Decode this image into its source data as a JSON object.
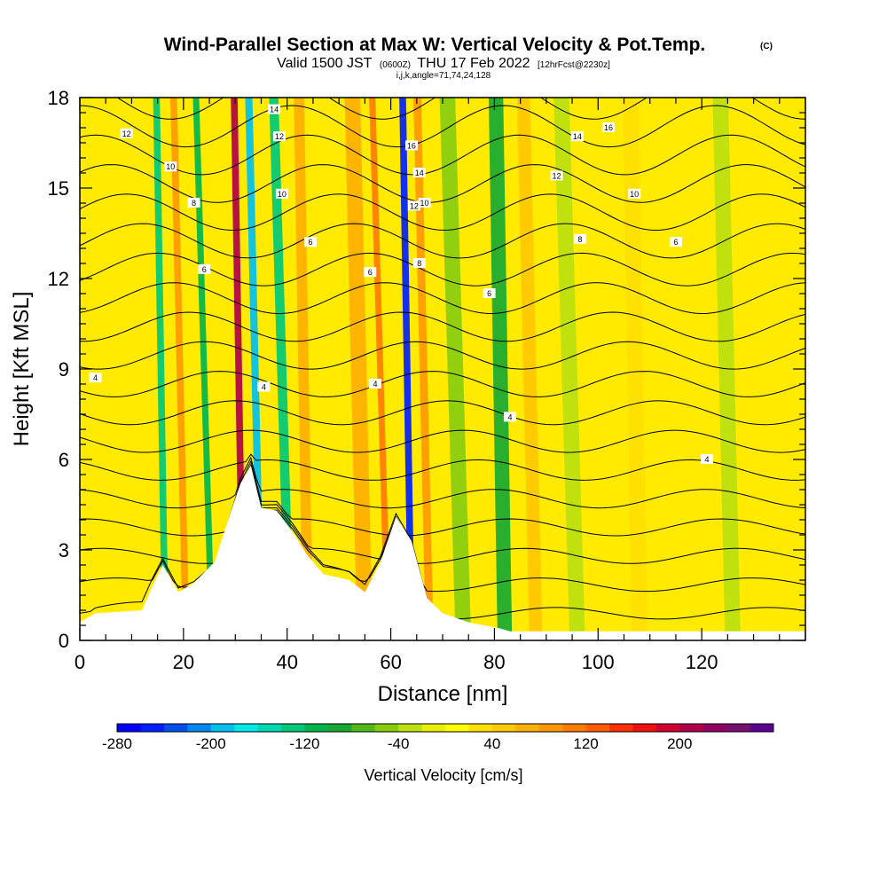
{
  "header": {
    "title": "Wind-Parallel Section at Max W: Vertical Velocity & Pot.Temp.",
    "copyright": "(C)",
    "valid_prefix": "Valid 1500 JST",
    "valid_utc": "(0600Z)",
    "valid_date": "THU 17 Feb 2022",
    "forecast": "[12hrFcst@2230z]",
    "indices": "i,j,k,angle=71,74,24,128"
  },
  "chart_data": {
    "type": "heatmap",
    "xlabel": "Distance [nm]",
    "ylabel": "Height [Kft MSL]",
    "xlim": [
      0,
      140
    ],
    "ylim": [
      0,
      18
    ],
    "x_ticks": [
      0,
      20,
      40,
      60,
      80,
      100,
      120
    ],
    "y_ticks": [
      0,
      3,
      6,
      9,
      12,
      15,
      18
    ],
    "grid": false,
    "terrain": [
      {
        "x": 0,
        "y": 0.6
      },
      {
        "x": 3,
        "y": 0.9
      },
      {
        "x": 12,
        "y": 1.0
      },
      {
        "x": 14,
        "y": 1.8
      },
      {
        "x": 16,
        "y": 2.5
      },
      {
        "x": 19,
        "y": 1.6
      },
      {
        "x": 22,
        "y": 1.9
      },
      {
        "x": 26,
        "y": 2.6
      },
      {
        "x": 29,
        "y": 4.2
      },
      {
        "x": 31,
        "y": 5.2
      },
      {
        "x": 33,
        "y": 5.8
      },
      {
        "x": 35,
        "y": 4.4
      },
      {
        "x": 38,
        "y": 4.3
      },
      {
        "x": 41,
        "y": 3.6
      },
      {
        "x": 44,
        "y": 2.8
      },
      {
        "x": 47,
        "y": 2.2
      },
      {
        "x": 52,
        "y": 2.0
      },
      {
        "x": 55,
        "y": 1.6
      },
      {
        "x": 58,
        "y": 2.6
      },
      {
        "x": 61,
        "y": 4.1
      },
      {
        "x": 64,
        "y": 3.3
      },
      {
        "x": 67,
        "y": 1.4
      },
      {
        "x": 70,
        "y": 0.9
      },
      {
        "x": 75,
        "y": 0.6
      },
      {
        "x": 81,
        "y": 0.4
      },
      {
        "x": 83,
        "y": 0.3
      },
      {
        "x": 140,
        "y": 0.3
      }
    ],
    "velocity_bands": [
      {
        "x": 16.5,
        "w": 1.3,
        "v": -130
      },
      {
        "x": 20.5,
        "w": 1.3,
        "v": 90
      },
      {
        "x": 25.5,
        "w": 1.2,
        "v": -110
      },
      {
        "x": 31.5,
        "w": 1.3,
        "v": 210
      },
      {
        "x": 35.0,
        "w": 1.4,
        "v": -200
      },
      {
        "x": 40.5,
        "w": 1.8,
        "v": -130
      },
      {
        "x": 44.0,
        "w": 2.0,
        "v": 60
      },
      {
        "x": 55.0,
        "w": 3.0,
        "v": 60
      },
      {
        "x": 59.5,
        "w": 1.2,
        "v": 110
      },
      {
        "x": 64.0,
        "w": 1.3,
        "v": -250
      },
      {
        "x": 67.5,
        "w": 1.5,
        "v": 90
      },
      {
        "x": 74.0,
        "w": 3.0,
        "v": -50
      },
      {
        "x": 82.0,
        "w": 2.8,
        "v": -90
      },
      {
        "x": 88.0,
        "w": 2.5,
        "v": 40
      },
      {
        "x": 96.0,
        "w": 3.0,
        "v": -40
      },
      {
        "x": 108.0,
        "w": 3.0,
        "v": 35
      },
      {
        "x": 126.0,
        "w": 3.0,
        "v": -40
      }
    ],
    "theta_contour_labels": [
      {
        "x": 3,
        "y": 8.7,
        "text": "4"
      },
      {
        "x": 35.5,
        "y": 8.4,
        "text": "4"
      },
      {
        "x": 57,
        "y": 8.5,
        "text": "4"
      },
      {
        "x": 83,
        "y": 7.4,
        "text": "4"
      },
      {
        "x": 121,
        "y": 6.0,
        "text": "4"
      },
      {
        "x": 24,
        "y": 12.3,
        "text": "6"
      },
      {
        "x": 44.5,
        "y": 13.2,
        "text": "6"
      },
      {
        "x": 56,
        "y": 12.2,
        "text": "6"
      },
      {
        "x": 79,
        "y": 11.5,
        "text": "6"
      },
      {
        "x": 65.5,
        "y": 12.5,
        "text": "8"
      },
      {
        "x": 22,
        "y": 14.5,
        "text": "8"
      },
      {
        "x": 96.5,
        "y": 13.3,
        "text": "8"
      },
      {
        "x": 115,
        "y": 13.2,
        "text": "6"
      },
      {
        "x": 17.5,
        "y": 15.7,
        "text": "10"
      },
      {
        "x": 39,
        "y": 14.8,
        "text": "10"
      },
      {
        "x": 66.5,
        "y": 14.5,
        "text": "10"
      },
      {
        "x": 107,
        "y": 14.8,
        "text": "10"
      },
      {
        "x": 9,
        "y": 16.8,
        "text": "12"
      },
      {
        "x": 38.5,
        "y": 16.7,
        "text": "12"
      },
      {
        "x": 64.5,
        "y": 14.4,
        "text": "12"
      },
      {
        "x": 92,
        "y": 15.4,
        "text": "12"
      },
      {
        "x": 37.5,
        "y": 17.6,
        "text": "14"
      },
      {
        "x": 65.5,
        "y": 15.5,
        "text": "14"
      },
      {
        "x": 96,
        "y": 16.7,
        "text": "14"
      },
      {
        "x": 64,
        "y": 16.4,
        "text": "16"
      },
      {
        "x": 102,
        "y": 17.0,
        "text": "16"
      }
    ],
    "colorbar": {
      "label": "Vertical Velocity [cm/s]",
      "range": [
        -280,
        280
      ],
      "tick_values": [
        -280,
        -200,
        -120,
        -40,
        40,
        120,
        200
      ],
      "tick_labels": [
        "-280",
        "-200",
        "-120",
        "-40",
        "40",
        "120",
        "200"
      ],
      "colors": [
        "#0000ff",
        "#0020ff",
        "#0050f0",
        "#0088f0",
        "#00c0f0",
        "#00e8e8",
        "#00d8b0",
        "#00c878",
        "#00b44c",
        "#18a832",
        "#50b818",
        "#88cc10",
        "#bce010",
        "#e8f000",
        "#ffff00",
        "#ffe000",
        "#ffc800",
        "#ffb000",
        "#ff9800",
        "#ff7c00",
        "#ff5c00",
        "#ff3000",
        "#f01010",
        "#d00030",
        "#b00048",
        "#900060",
        "#781070",
        "#5a0090"
      ]
    }
  }
}
